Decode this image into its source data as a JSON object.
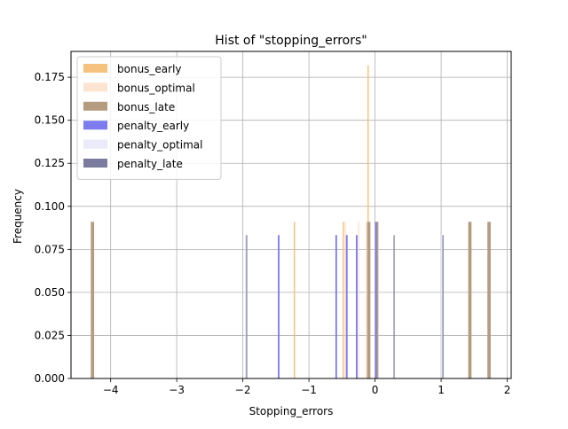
{
  "chart_data": {
    "type": "bar",
    "title": "Hist of \"stopping_errors\"",
    "xlabel": "Stopping_errors",
    "ylabel": "Frequency",
    "xlim": [
      -4.6,
      2.06
    ],
    "ylim": [
      0.0,
      0.19
    ],
    "xticks": [
      -4,
      -3,
      -2,
      -1,
      0,
      1,
      2
    ],
    "xtick_labels": [
      "−4",
      "−3",
      "−2",
      "−1",
      "0",
      "1",
      "2"
    ],
    "yticks": [
      0.0,
      0.025,
      0.05,
      0.075,
      0.1,
      0.125,
      0.15,
      0.175
    ],
    "ytick_labels": [
      "0.000",
      "0.025",
      "0.050",
      "0.075",
      "0.100",
      "0.125",
      "0.150",
      "0.175"
    ],
    "grid": true,
    "legend_position": "top-left",
    "series": [
      {
        "name": "bonus_early",
        "color": "#f4b969",
        "opacity": 0.85,
        "bars": [
          {
            "x0": -1.23,
            "x1": -1.21,
            "y": 0.091
          },
          {
            "x0": -0.49,
            "x1": -0.47,
            "y": 0.091
          },
          {
            "x0": -0.115,
            "x1": -0.095,
            "y": 0.182
          }
        ]
      },
      {
        "name": "bonus_optimal",
        "color": "#f9dcc0",
        "opacity": 0.75,
        "bars": [
          {
            "x0": -0.46,
            "x1": -0.44,
            "y": 0.091
          },
          {
            "x0": -0.26,
            "x1": -0.24,
            "y": 0.091
          },
          {
            "x0": -0.14,
            "x1": -0.12,
            "y": 0.091
          }
        ]
      },
      {
        "name": "bonus_late",
        "color": "#b59c7f",
        "opacity": 1.0,
        "bars": [
          {
            "x0": -4.3,
            "x1": -4.25,
            "y": 0.091
          },
          {
            "x0": -0.12,
            "x1": -0.07,
            "y": 0.091
          },
          {
            "x0": 0.0,
            "x1": 0.05,
            "y": 0.091
          },
          {
            "x0": 1.41,
            "x1": 1.46,
            "y": 0.091
          },
          {
            "x0": 1.7,
            "x1": 1.75,
            "y": 0.091
          }
        ]
      },
      {
        "name": "penalty_early",
        "color": "#7c7cee",
        "opacity": 1.0,
        "bars": [
          {
            "x0": -1.47,
            "x1": -1.445,
            "y": 0.0833
          },
          {
            "x0": -0.6,
            "x1": -0.575,
            "y": 0.0833
          },
          {
            "x0": -0.44,
            "x1": -0.415,
            "y": 0.0833
          },
          {
            "x0": -0.29,
            "x1": -0.265,
            "y": 0.0833
          },
          {
            "x0": 0.0,
            "x1": 0.025,
            "y": 0.0909
          }
        ]
      },
      {
        "name": "penalty_optimal",
        "color": "#e8e8fb",
        "opacity": 0.9,
        "bars": [
          {
            "x0": -1.97,
            "x1": -1.95,
            "y": 0.0833
          },
          {
            "x0": 1.0,
            "x1": 1.02,
            "y": 0.0833
          }
        ]
      },
      {
        "name": "penalty_late",
        "color": "#7a7b9e",
        "opacity": 1.0,
        "bars": [
          {
            "x0": -1.95,
            "x1": -1.94,
            "y": 0.0833
          },
          {
            "x0": 0.28,
            "x1": 0.29,
            "y": 0.0833
          },
          {
            "x0": 1.02,
            "x1": 1.03,
            "y": 0.0833
          }
        ]
      }
    ]
  }
}
